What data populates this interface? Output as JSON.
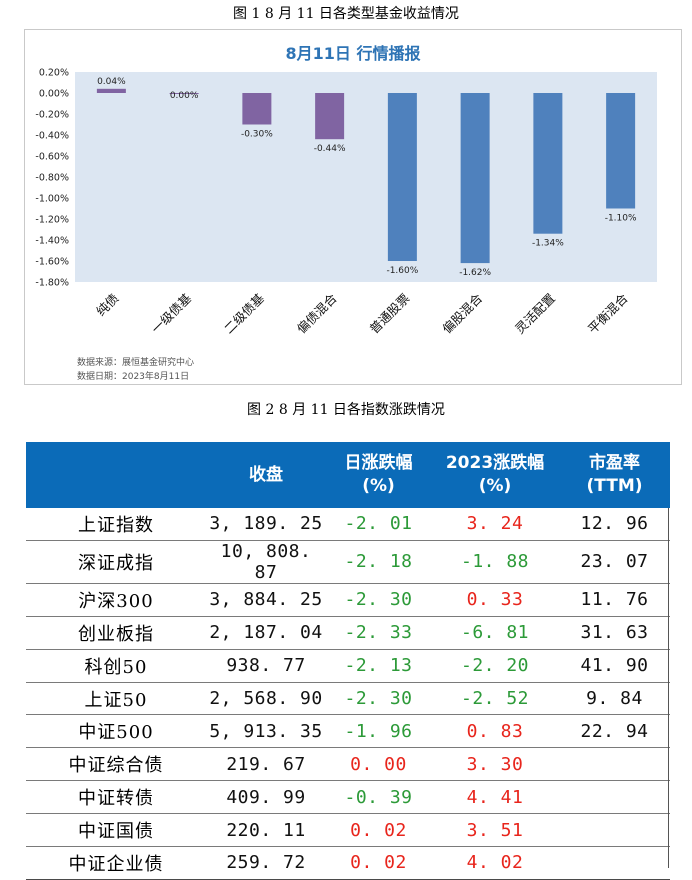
{
  "figure1": {
    "caption": "图 1  8 月 11 日各类型基金收益情况",
    "footer_source": "数据来源：展恒基金研究中心",
    "footer_date": "数据日期：2023年8月11日"
  },
  "chart_data": {
    "type": "bar",
    "title": "8月11日  行情播报",
    "categories": [
      "纯债",
      "一级债基",
      "二级债基",
      "偏债混合",
      "普通股票",
      "偏股混合",
      "灵活配置",
      "平衡混合"
    ],
    "values": [
      0.04,
      0.0,
      -0.3,
      -0.44,
      -1.6,
      -1.62,
      -1.34,
      -1.1
    ],
    "data_labels": [
      "0.04%",
      "0.00%",
      "-0.30%",
      "-0.44%",
      "-1.60%",
      "-1.62%",
      "-1.34%",
      "-1.10%"
    ],
    "bar_colors": [
      "#8064a2",
      "#8064a2",
      "#8064a2",
      "#8064a2",
      "#4f81bd",
      "#4f81bd",
      "#4f81bd",
      "#4f81bd"
    ],
    "plot_background": "#dce6f2",
    "title_color": "#2e74b5",
    "ylim": [
      -1.8,
      0.2
    ],
    "yticks": [
      "0.20%",
      "0.00%",
      "-0.20%",
      "-0.40%",
      "-0.60%",
      "-0.80%",
      "-1.00%",
      "-1.20%",
      "-1.40%",
      "-1.60%",
      "-1.80%"
    ],
    "ytick_values": [
      0.2,
      0.0,
      -0.2,
      -0.4,
      -0.6,
      -0.8,
      -1.0,
      -1.2,
      -1.4,
      -1.6,
      -1.8
    ],
    "xlabel": "",
    "ylabel": "",
    "grid": false,
    "legend": "none"
  },
  "figure2": {
    "caption": "图 2  8 月 11 日各指数涨跌情况",
    "header_color": "#0b6bb8",
    "columns": [
      "",
      "收盘",
      "日涨跌幅\n(%)",
      "2023涨跌幅\n(%)",
      "市盈率\n(TTM)"
    ],
    "rows": [
      {
        "name": "上证指数",
        "close": "3, 189. 25",
        "day": "-2. 01",
        "ytd": "3. 24",
        "pe": "12. 96",
        "day_sign": "neg",
        "ytd_sign": "pos"
      },
      {
        "name": "深证成指",
        "close": "10, 808. 87",
        "day": "-2. 18",
        "ytd": "-1. 88",
        "pe": "23. 07",
        "day_sign": "neg",
        "ytd_sign": "neg"
      },
      {
        "name": "沪深300",
        "close": "3, 884. 25",
        "day": "-2. 30",
        "ytd": "0. 33",
        "pe": "11. 76",
        "day_sign": "neg",
        "ytd_sign": "pos"
      },
      {
        "name": "创业板指",
        "close": "2, 187. 04",
        "day": "-2. 33",
        "ytd": "-6. 81",
        "pe": "31. 63",
        "day_sign": "neg",
        "ytd_sign": "neg"
      },
      {
        "name": "科创50",
        "close": "938. 77",
        "day": "-2. 13",
        "ytd": "-2. 20",
        "pe": "41. 90",
        "day_sign": "neg",
        "ytd_sign": "neg"
      },
      {
        "name": "上证50",
        "close": "2, 568. 90",
        "day": "-2. 30",
        "ytd": "-2. 52",
        "pe": "9. 84",
        "day_sign": "neg",
        "ytd_sign": "neg"
      },
      {
        "name": "中证500",
        "close": "5, 913. 35",
        "day": "-1. 96",
        "ytd": "0. 83",
        "pe": "22. 94",
        "day_sign": "neg",
        "ytd_sign": "pos"
      },
      {
        "name": "中证综合债",
        "close": "219. 67",
        "day": "0. 00",
        "ytd": "3. 30",
        "pe": "",
        "day_sign": "pos",
        "ytd_sign": "pos"
      },
      {
        "name": "中证转债",
        "close": "409. 99",
        "day": "-0. 39",
        "ytd": "4. 41",
        "pe": "",
        "day_sign": "neg",
        "ytd_sign": "pos"
      },
      {
        "name": "中证国债",
        "close": "220. 11",
        "day": "0. 02",
        "ytd": "3. 51",
        "pe": "",
        "day_sign": "pos",
        "ytd_sign": "pos"
      },
      {
        "name": "中证企业债",
        "close": "259. 72",
        "day": "0. 02",
        "ytd": "4. 02",
        "pe": "",
        "day_sign": "pos",
        "ytd_sign": "pos"
      }
    ]
  }
}
